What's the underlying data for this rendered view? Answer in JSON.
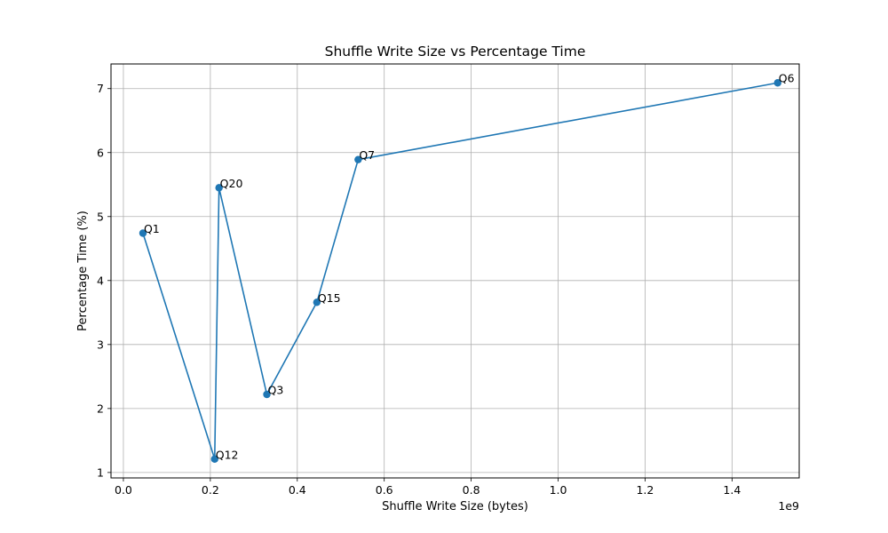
{
  "chart_data": {
    "type": "line",
    "title": "Shuffle Write Size vs Percentage Time",
    "xlabel": "Shuffle Write Size (bytes)",
    "ylabel": "Percentage Time (%)",
    "x_offset_label": "1e9",
    "xlim": [
      -0.0285,
      1.5545
    ],
    "ylim": [
      0.915,
      7.385
    ],
    "xticks": [
      0.0,
      0.2,
      0.4,
      0.6,
      0.8,
      1.0,
      1.2,
      1.4
    ],
    "xtick_labels": [
      "0.0",
      "0.2",
      "0.4",
      "0.6",
      "0.8",
      "1.0",
      "1.2",
      "1.4"
    ],
    "yticks": [
      1,
      2,
      3,
      4,
      5,
      6,
      7
    ],
    "ytick_labels": [
      "1",
      "2",
      "3",
      "4",
      "5",
      "6",
      "7"
    ],
    "grid": true,
    "color": "#1f77b4",
    "points": [
      {
        "label": "Q1",
        "x": 0.045,
        "y": 4.74
      },
      {
        "label": "Q12",
        "x": 0.21,
        "y": 1.21
      },
      {
        "label": "Q20",
        "x": 0.22,
        "y": 5.45
      },
      {
        "label": "Q3",
        "x": 0.33,
        "y": 2.22
      },
      {
        "label": "Q15",
        "x": 0.445,
        "y": 3.66
      },
      {
        "label": "Q7",
        "x": 0.54,
        "y": 5.89
      },
      {
        "label": "Q6",
        "x": 1.505,
        "y": 7.09
      }
    ]
  }
}
